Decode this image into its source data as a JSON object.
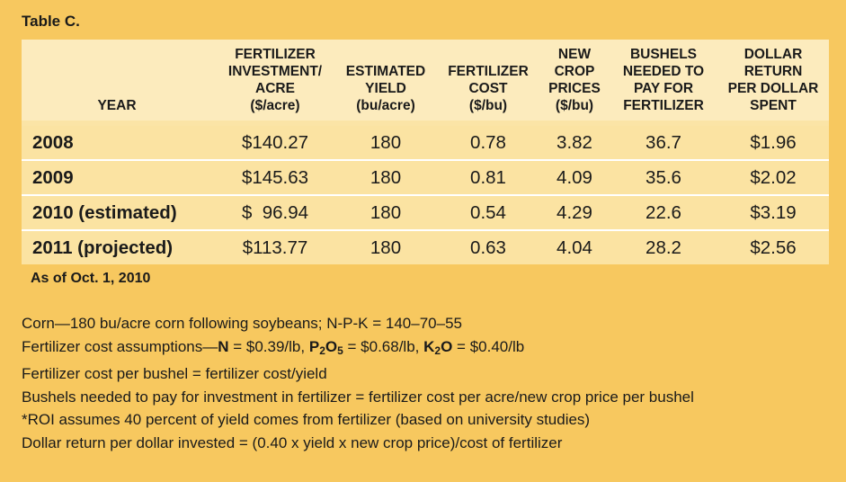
{
  "title": "Table C.",
  "headers": {
    "year": "YEAR",
    "investment": "FERTILIZER\nINVESTMENT/\nACRE\n($/acre)",
    "yield": "ESTIMATED\nYIELD\n(bu/acre)",
    "cost": "FERTILIZER\nCOST\n($/bu)",
    "price": "NEW\nCROP\nPRICES\n($/bu)",
    "bushels": "BUSHELS\nNEEDED TO\nPAY FOR\nFERTILIZER",
    "return": "DOLLAR\nRETURN\nPER DOLLAR\nSPENT"
  },
  "rows": [
    {
      "year": "2008",
      "investment": "$140.27",
      "yield": "180",
      "cost": "0.78",
      "price": "3.82",
      "bushels": "36.7",
      "return": "$1.96"
    },
    {
      "year": "2009",
      "investment": "$145.63",
      "yield": "180",
      "cost": "0.81",
      "price": "4.09",
      "bushels": "35.6",
      "return": "$2.02"
    },
    {
      "year": "2010 (estimated)",
      "investment": "$  96.94",
      "yield": "180",
      "cost": "0.54",
      "price": "4.29",
      "bushels": "22.6",
      "return": "$3.19"
    },
    {
      "year": "2011 (projected)",
      "investment": "$113.77",
      "yield": "180",
      "cost": "0.63",
      "price": "4.04",
      "bushels": "28.2",
      "return": "$2.56"
    }
  ],
  "as_of": "As of Oct. 1, 2010",
  "notes": {
    "corn": "Corn—180 bu/acre corn following soybeans; N-P-K = 140–70–55",
    "assumptions": {
      "prefix": "Fertilizer cost assumptions—",
      "n_label": "N",
      "n_value": " = $0.39/lb, ",
      "p_label": "P",
      "p_sub1": "2",
      "p_mid": "O",
      "p_sub2": "5",
      "p_value": " = $0.68/lb, ",
      "k_label": "K",
      "k_sub": "2",
      "k_mid": "O",
      "k_value": " = $0.40/lb"
    },
    "cost_per_bushel": "Fertilizer cost per bushel = fertilizer cost/yield",
    "bushels_needed": "Bushels needed to pay for investment in fertilizer = fertilizer cost per acre/new crop price per bushel",
    "roi": "*ROI assumes 40 percent of yield comes from fertilizer (based on university studies)",
    "dollar_return": "Dollar return per dollar invested = (0.40 x yield x new crop price)/cost of fertilizer"
  }
}
